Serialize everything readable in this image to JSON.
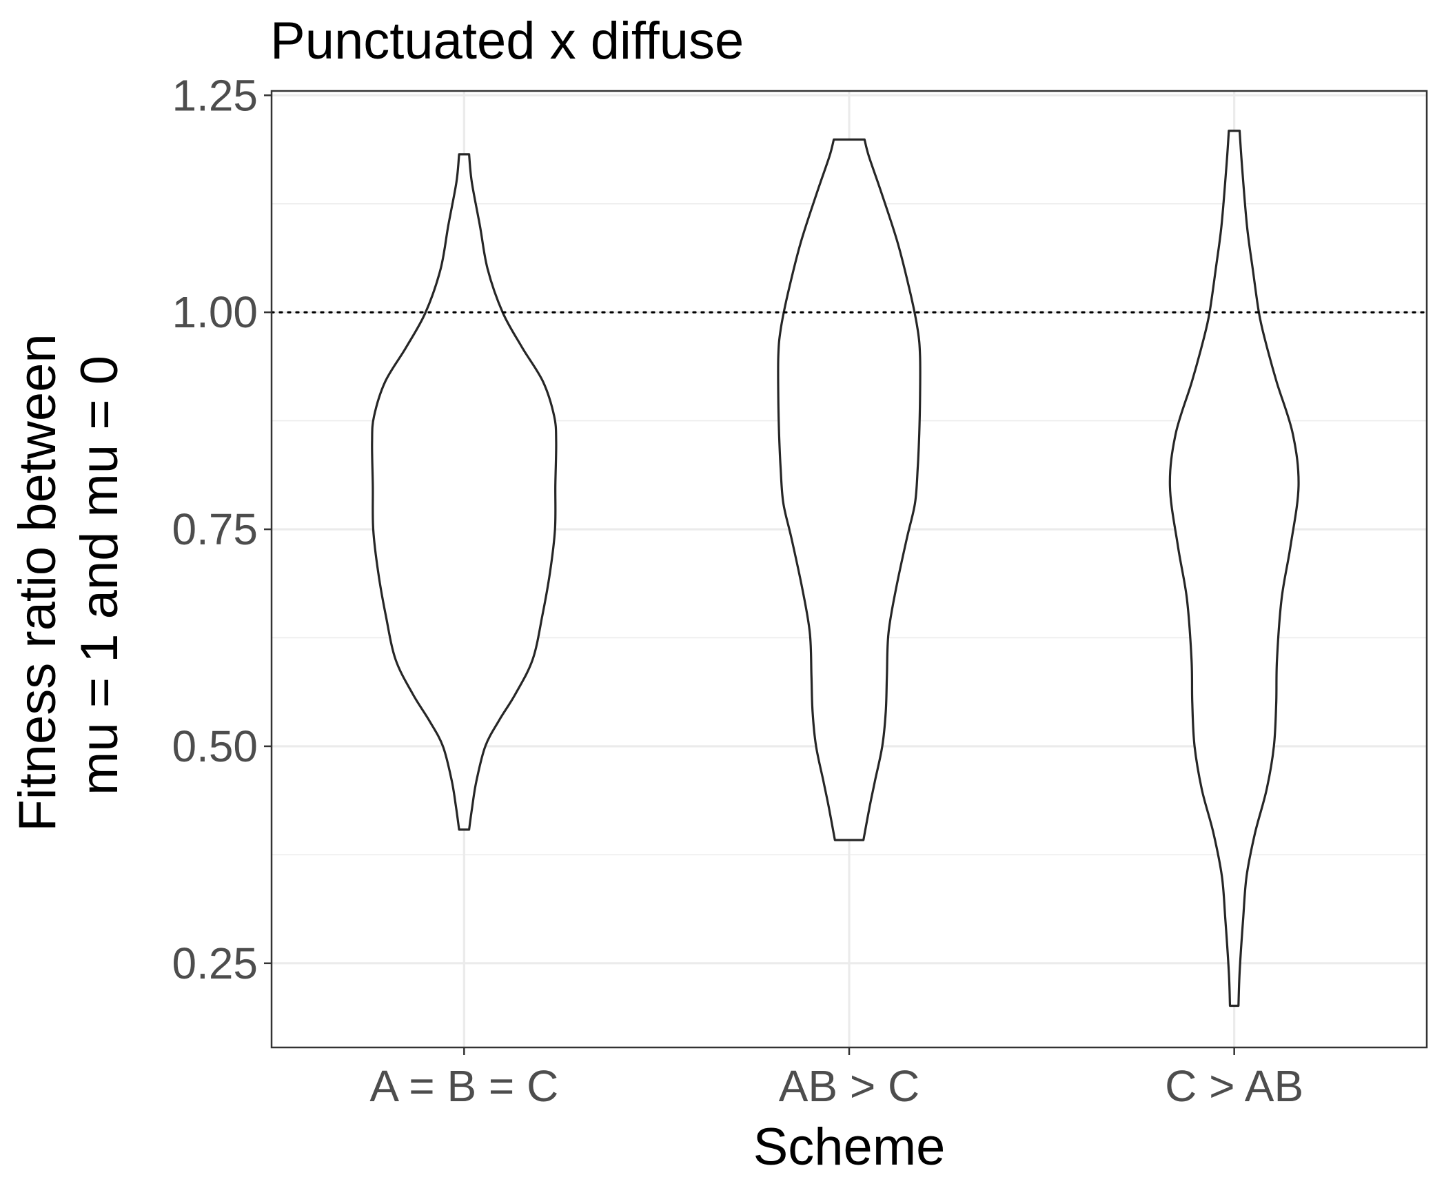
{
  "chart_data": {
    "type": "violin",
    "title": "Punctuated x diffuse",
    "xlabel": "Scheme",
    "ylabel_lines": [
      "Fitness ratio between",
      "mu = 1 and mu = 0"
    ],
    "categories": [
      "A = B = C",
      "AB > C",
      "C > AB"
    ],
    "y_ticks": [
      "0.25",
      "0.50",
      "0.75",
      "1.00",
      "1.25"
    ],
    "ylim": [
      0.153,
      1.255
    ],
    "reference_line": {
      "y": 1.0,
      "style": "dotted"
    },
    "grid": true,
    "violins": [
      {
        "category": "A = B = C",
        "profile": [
          [
            0.404,
            0.013
          ],
          [
            0.43,
            0.021
          ],
          [
            0.46,
            0.032
          ],
          [
            0.5,
            0.055
          ],
          [
            0.53,
            0.091
          ],
          [
            0.56,
            0.133
          ],
          [
            0.6,
            0.178
          ],
          [
            0.65,
            0.203
          ],
          [
            0.7,
            0.223
          ],
          [
            0.75,
            0.236
          ],
          [
            0.8,
            0.237
          ],
          [
            0.85,
            0.239
          ],
          [
            0.88,
            0.234
          ],
          [
            0.92,
            0.205
          ],
          [
            0.96,
            0.15
          ],
          [
            1.0,
            0.1
          ],
          [
            1.05,
            0.061
          ],
          [
            1.1,
            0.041
          ],
          [
            1.15,
            0.02
          ],
          [
            1.182,
            0.013
          ]
        ]
      },
      {
        "category": "AB > C",
        "profile": [
          [
            0.392,
            0.037
          ],
          [
            0.43,
            0.053
          ],
          [
            0.46,
            0.067
          ],
          [
            0.5,
            0.086
          ],
          [
            0.54,
            0.095
          ],
          [
            0.58,
            0.098
          ],
          [
            0.63,
            0.102
          ],
          [
            0.68,
            0.121
          ],
          [
            0.74,
            0.15
          ],
          [
            0.78,
            0.171
          ],
          [
            0.82,
            0.178
          ],
          [
            0.86,
            0.182
          ],
          [
            0.9,
            0.184
          ],
          [
            0.95,
            0.184
          ],
          [
            0.98,
            0.178
          ],
          [
            1.02,
            0.16
          ],
          [
            1.08,
            0.126
          ],
          [
            1.14,
            0.082
          ],
          [
            1.18,
            0.051
          ],
          [
            1.199,
            0.04
          ]
        ]
      },
      {
        "category": "C > AB",
        "profile": [
          [
            0.201,
            0.011
          ],
          [
            0.24,
            0.014
          ],
          [
            0.3,
            0.023
          ],
          [
            0.35,
            0.032
          ],
          [
            0.4,
            0.054
          ],
          [
            0.45,
            0.084
          ],
          [
            0.5,
            0.103
          ],
          [
            0.55,
            0.109
          ],
          [
            0.6,
            0.111
          ],
          [
            0.67,
            0.123
          ],
          [
            0.73,
            0.146
          ],
          [
            0.8,
            0.167
          ],
          [
            0.86,
            0.152
          ],
          [
            0.92,
            0.11
          ],
          [
            0.97,
            0.079
          ],
          [
            1.0,
            0.064
          ],
          [
            1.05,
            0.048
          ],
          [
            1.1,
            0.033
          ],
          [
            1.17,
            0.02
          ],
          [
            1.209,
            0.014
          ]
        ]
      }
    ]
  }
}
